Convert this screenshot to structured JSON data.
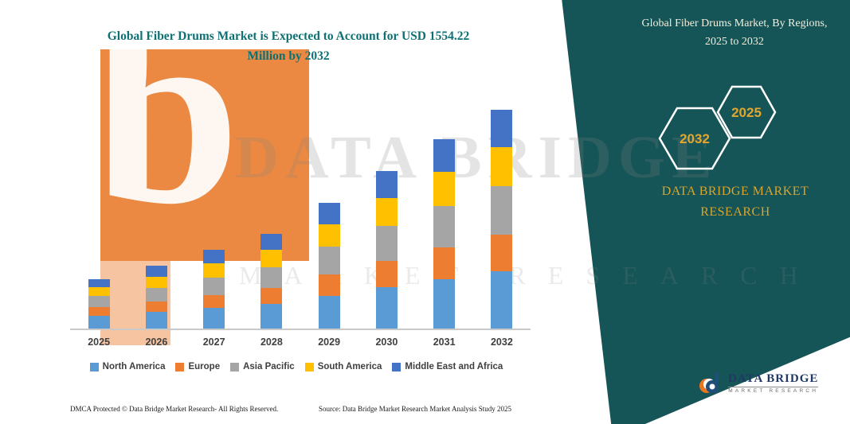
{
  "title": "Global Fiber Drums Market is Expected to Account for USD 1554.22 Million by 2032",
  "side_panel": {
    "heading": "Global Fiber Drums Market, By Regions, 2025 to 2032",
    "hexagons": [
      "2032",
      "2025"
    ],
    "brand_line1": "DATA BRIDGE MARKET",
    "brand_line2": "RESEARCH"
  },
  "watermark": {
    "line1": "DATA BRIDGE",
    "line2": "MARKET RESEARCH",
    "logo_letter": "b"
  },
  "footer": {
    "dmca": "DMCA Protected © Data Bridge Market Research-  All Rights Reserved.",
    "source": "Source: Data Bridge Market Research  Market Analysis Study 2025"
  },
  "logo": {
    "title": "DATA BRIDGE",
    "subtitle": "MARKET RESEARCH"
  },
  "chart_data": {
    "type": "bar",
    "stacked": true,
    "unit": "USD Million",
    "title": "Global Fiber Drums Market is Expected to Account for USD 1554.22 Million by 2032",
    "categories": [
      "2025",
      "2026",
      "2027",
      "2028",
      "2029",
      "2030",
      "2031",
      "2032"
    ],
    "series": [
      {
        "name": "North America",
        "color": "#5B9BD5",
        "values": [
          92,
          116,
          145,
          174,
          232,
          291,
          349,
          404
        ]
      },
      {
        "name": "Europe",
        "color": "#ED7D31",
        "values": [
          60,
          76,
          95,
          114,
          152,
          190,
          228,
          264
        ]
      },
      {
        "name": "Asia Pacific",
        "color": "#A5A5A5",
        "values": [
          77,
          98,
          123,
          148,
          197,
          246,
          295,
          342
        ]
      },
      {
        "name": "South America",
        "color": "#FFC000",
        "values": [
          63,
          80,
          101,
          121,
          161,
          201,
          242,
          280
        ]
      },
      {
        "name": "Middle East and Africa",
        "color": "#4472C4",
        "values": [
          60,
          77,
          95,
          114,
          152,
          190,
          228,
          264.22
        ]
      }
    ],
    "totals": [
      352,
      447,
      559,
      671,
      894,
      1118,
      1342,
      1554.22
    ],
    "xlabel": "",
    "ylabel": "",
    "ylim": [
      0,
      1700
    ],
    "grid": false,
    "legend_position": "bottom"
  }
}
